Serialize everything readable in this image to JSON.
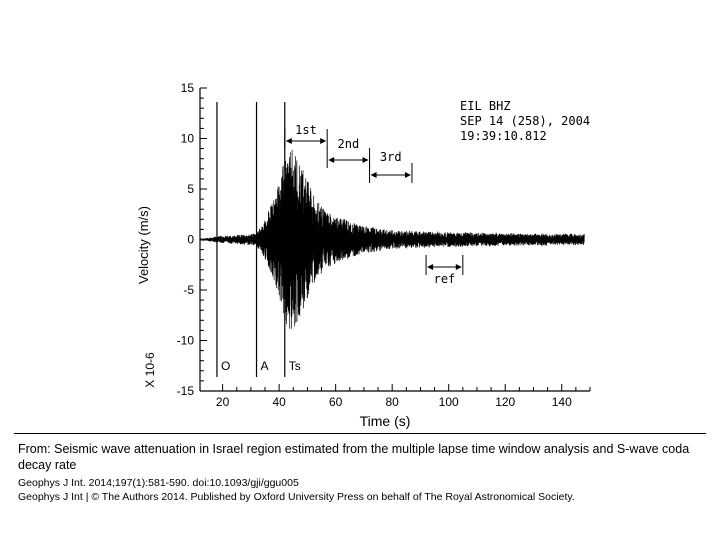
{
  "chart_data": {
    "type": "line",
    "xlabel": "Time (s)",
    "ylabel": "Velocity (m/s)",
    "y_scale_note": "X 10-6",
    "xlim": [
      12,
      150
    ],
    "ylim": [
      -15,
      15
    ],
    "x_ticks": [
      20,
      40,
      60,
      80,
      100,
      120,
      140
    ],
    "y_ticks": [
      15,
      10,
      5,
      0,
      -5,
      -10,
      -15
    ],
    "x_tick_labels": [
      "20",
      "40",
      "60",
      "80",
      "100",
      "120",
      "140"
    ],
    "y_tick_labels": [
      "15",
      "10",
      "5",
      "0",
      "-5",
      "-10",
      "-15"
    ],
    "grid": false,
    "station_info": [
      "EIL  BHZ",
      "SEP 14 (258), 2004",
      "19:39:10.812"
    ],
    "markers": [
      {
        "label": "O",
        "x": 18
      },
      {
        "label": "A",
        "x": 32
      },
      {
        "label": "Ts",
        "x": 42
      }
    ],
    "windows": [
      {
        "label": "1st",
        "start": 42,
        "end": 57
      },
      {
        "label": "2nd",
        "start": 57,
        "end": 72
      },
      {
        "label": "3rd",
        "start": 72,
        "end": 87
      },
      {
        "label": "ref",
        "start": 92,
        "end": 105
      }
    ],
    "waveform_envelope": [
      [
        12,
        0.0
      ],
      [
        18,
        0.3
      ],
      [
        25,
        0.4
      ],
      [
        32,
        0.6
      ],
      [
        35,
        2.0
      ],
      [
        38,
        4.0
      ],
      [
        40,
        6.0
      ],
      [
        42,
        8.0
      ],
      [
        44,
        9.0
      ],
      [
        46,
        8.5
      ],
      [
        48,
        7.5
      ],
      [
        50,
        6.0
      ],
      [
        53,
        4.0
      ],
      [
        56,
        3.0
      ],
      [
        60,
        2.4
      ],
      [
        65,
        1.8
      ],
      [
        70,
        1.3
      ],
      [
        75,
        1.1
      ],
      [
        80,
        0.9
      ],
      [
        90,
        0.8
      ],
      [
        100,
        0.7
      ],
      [
        120,
        0.6
      ],
      [
        148,
        0.5
      ]
    ]
  },
  "caption": {
    "title": "From: Seismic wave attenuation in Israel region estimated from the multiple lapse time window analysis and S-wave coda decay rate",
    "citation": "Geophys J Int. 2014;197(1):581-590. doi:10.1093/gji/ggu005",
    "copyright": "Geophys J Int | © The Authors 2014. Published by Oxford University Press on behalf of The Royal Astronomical Society."
  }
}
